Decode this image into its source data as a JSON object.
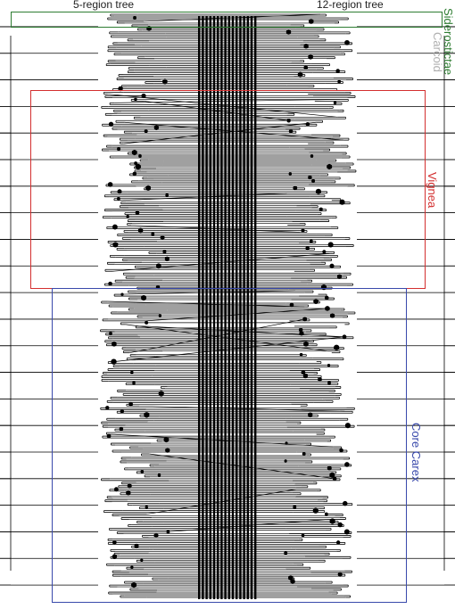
{
  "titles": {
    "left": "5-region tree",
    "right": "12-region tree"
  },
  "clades": [
    {
      "id": "siderosticta",
      "label": "Siderostictae",
      "color": "#2e7d32"
    },
    {
      "id": "carcoid",
      "label": "Carcoid",
      "color": "#b0b0b0"
    },
    {
      "id": "vignea",
      "label": "Vignea",
      "color": "#d32f2f"
    },
    {
      "id": "core-carex",
      "label": "Core Carex",
      "color": "#3949ab"
    }
  ],
  "colors": {
    "tree_line": "#000000",
    "connector": "#000000",
    "background": "#ffffff"
  }
}
